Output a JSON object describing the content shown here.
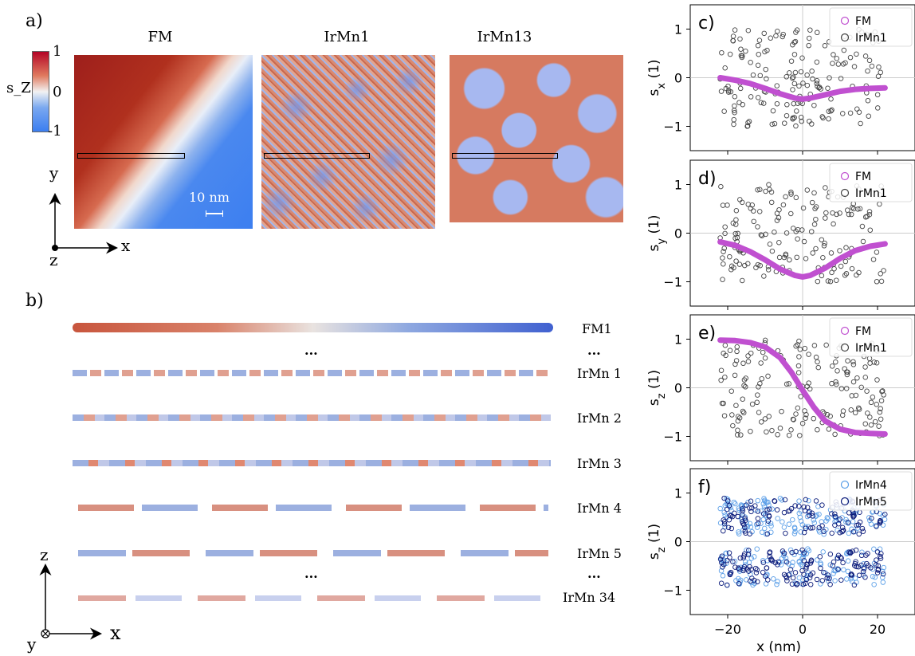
{
  "panels": {
    "a": "a)",
    "b": "b)",
    "c": "c)",
    "d": "d)",
    "e": "e)",
    "f": "f)"
  },
  "maps": {
    "titles": [
      "FM",
      "IrMn1",
      "IrMn13"
    ],
    "colorbar": {
      "label": "s_Z",
      "ticks": [
        "1",
        "0",
        "-1"
      ],
      "colors": {
        "high": "#b40426",
        "mid": "#f2f2f2",
        "low": "#3b7ef0"
      }
    },
    "scalebar": "10 nm",
    "axes2d": {
      "y": "y",
      "x": "x",
      "z": "z"
    }
  },
  "chains": {
    "labels": [
      "FM1",
      "...",
      "IrMn 1",
      "IrMn 2",
      "IrMn 3",
      "IrMn 4",
      "IrMn 5",
      "...",
      "IrMn 34"
    ],
    "dots": [
      "...",
      "..."
    ],
    "axes": {
      "z": "z",
      "x": "x",
      "y": "y"
    }
  },
  "chart_data": [
    {
      "panel": "c)",
      "type": "scatter",
      "ylabel": "s_x (1)",
      "xlim": [
        -30,
        30
      ],
      "ylim": [
        -1.5,
        1.5
      ],
      "yticks": [
        1,
        0,
        -1
      ],
      "legend": "top-right",
      "series": [
        {
          "name": "FM",
          "style": "line",
          "color": "#c050d0",
          "x": [
            -22,
            -18,
            -14,
            -10,
            -6,
            -2,
            0,
            2,
            6,
            10,
            14,
            18,
            22
          ],
          "y": [
            0.0,
            -0.05,
            -0.12,
            -0.22,
            -0.33,
            -0.42,
            -0.44,
            -0.42,
            -0.35,
            -0.28,
            -0.24,
            -0.22,
            -0.21
          ]
        },
        {
          "name": "IrMn1",
          "style": "scatter",
          "color": "#444444",
          "generated": true
        }
      ]
    },
    {
      "panel": "d)",
      "type": "scatter",
      "ylabel": "s_y (1)",
      "xlim": [
        -30,
        30
      ],
      "ylim": [
        -1.5,
        1.5
      ],
      "yticks": [
        1,
        0,
        -1
      ],
      "legend": "top-right",
      "series": [
        {
          "name": "FM",
          "style": "line",
          "color": "#c050d0",
          "x": [
            -22,
            -18,
            -14,
            -10,
            -6,
            -2,
            0,
            2,
            6,
            10,
            14,
            18,
            22
          ],
          "y": [
            -0.18,
            -0.25,
            -0.38,
            -0.55,
            -0.74,
            -0.87,
            -0.9,
            -0.87,
            -0.72,
            -0.52,
            -0.36,
            -0.27,
            -0.22
          ]
        },
        {
          "name": "IrMn1",
          "style": "scatter",
          "color": "#444444",
          "generated": true
        }
      ]
    },
    {
      "panel": "e)",
      "type": "scatter",
      "ylabel": "s_z (1)",
      "xlim": [
        -30,
        30
      ],
      "ylim": [
        -1.5,
        1.5
      ],
      "yticks": [
        1,
        0,
        -1
      ],
      "legend": "top-right",
      "series": [
        {
          "name": "FM",
          "style": "line",
          "color": "#c050d0",
          "x": [
            -22,
            -18,
            -14,
            -10,
            -6,
            -3,
            0,
            3,
            6,
            10,
            14,
            18,
            22
          ],
          "y": [
            0.98,
            0.97,
            0.93,
            0.84,
            0.62,
            0.32,
            -0.05,
            -0.4,
            -0.68,
            -0.85,
            -0.92,
            -0.94,
            -0.95
          ]
        },
        {
          "name": "IrMn1",
          "style": "scatter",
          "color": "#444444",
          "generated": true
        }
      ]
    },
    {
      "panel": "f)",
      "type": "scatter",
      "ylabel": "s_z (1)",
      "xlabel": "x (nm)",
      "xlim": [
        -30,
        30
      ],
      "xticks": [
        -20,
        0,
        20
      ],
      "ylim": [
        -1.5,
        1.5
      ],
      "yticks": [
        1,
        0,
        -1
      ],
      "legend": "top-right",
      "series": [
        {
          "name": "IrMn4",
          "style": "scatter",
          "color": "#5da0e8"
        },
        {
          "name": "IrMn5",
          "style": "scatter",
          "color": "#0a1a7a"
        }
      ]
    }
  ]
}
